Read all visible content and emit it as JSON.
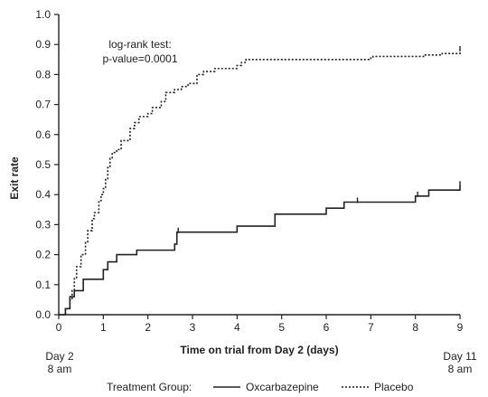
{
  "chart_data": {
    "type": "line",
    "subtype": "step",
    "xlabel": "Time on trial from Day 2 (days)",
    "ylabel": "Exit rate",
    "xlim": [
      0,
      9
    ],
    "ylim": [
      0.0,
      1.0
    ],
    "x_ticks": [
      "0",
      "1",
      "2",
      "3",
      "4",
      "5",
      "6",
      "7",
      "8",
      "9"
    ],
    "y_ticks": [
      "0.0",
      "0.1",
      "0.2",
      "0.3",
      "0.4",
      "0.5",
      "0.6",
      "0.7",
      "0.8",
      "0.9",
      "1.0"
    ],
    "grid": false,
    "x_start_label": [
      "Day 2",
      "8 am"
    ],
    "x_end_label": [
      "Day 11",
      "8 am"
    ],
    "annotation": [
      "log-rank test:",
      "p-value=0.0001"
    ],
    "legend_title": "Treatment Group:",
    "legend_position": "bottom",
    "series": [
      {
        "name": "Oxcarbazepine",
        "style": "solid",
        "color": "#222222",
        "x": [
          0,
          0.15,
          0.25,
          0.35,
          0.55,
          1.0,
          1.1,
          1.3,
          1.75,
          2.6,
          2.65,
          4.0,
          4.85,
          6.0,
          6.4,
          8.0,
          8.3,
          9.0
        ],
        "y": [
          0,
          0.02,
          0.06,
          0.08,
          0.118,
          0.15,
          0.176,
          0.2,
          0.215,
          0.235,
          0.275,
          0.295,
          0.335,
          0.355,
          0.375,
          0.395,
          0.415,
          0.43
        ],
        "censor_x": [
          2.68,
          6.7,
          8.05,
          9.0
        ]
      },
      {
        "name": "Placebo",
        "style": "dotted",
        "color": "#222222",
        "x": [
          0,
          0.15,
          0.25,
          0.3,
          0.35,
          0.4,
          0.5,
          0.6,
          0.65,
          0.75,
          0.8,
          0.9,
          0.95,
          1.0,
          1.05,
          1.1,
          1.15,
          1.2,
          1.3,
          1.4,
          1.6,
          1.7,
          1.8,
          2.0,
          2.1,
          2.3,
          2.4,
          2.6,
          2.75,
          2.9,
          3.1,
          3.25,
          3.5,
          4.0,
          4.1,
          4.2,
          6.0,
          7.0,
          7.05,
          8.2,
          8.6,
          9.0
        ],
        "y": [
          0,
          0.02,
          0.05,
          0.08,
          0.12,
          0.16,
          0.2,
          0.24,
          0.28,
          0.32,
          0.34,
          0.38,
          0.4,
          0.42,
          0.45,
          0.49,
          0.52,
          0.54,
          0.55,
          0.58,
          0.62,
          0.64,
          0.66,
          0.67,
          0.69,
          0.71,
          0.74,
          0.75,
          0.76,
          0.77,
          0.8,
          0.81,
          0.82,
          0.83,
          0.84,
          0.85,
          0.85,
          0.855,
          0.86,
          0.865,
          0.87,
          0.88
        ],
        "censor_x": [
          9.0
        ]
      }
    ]
  }
}
